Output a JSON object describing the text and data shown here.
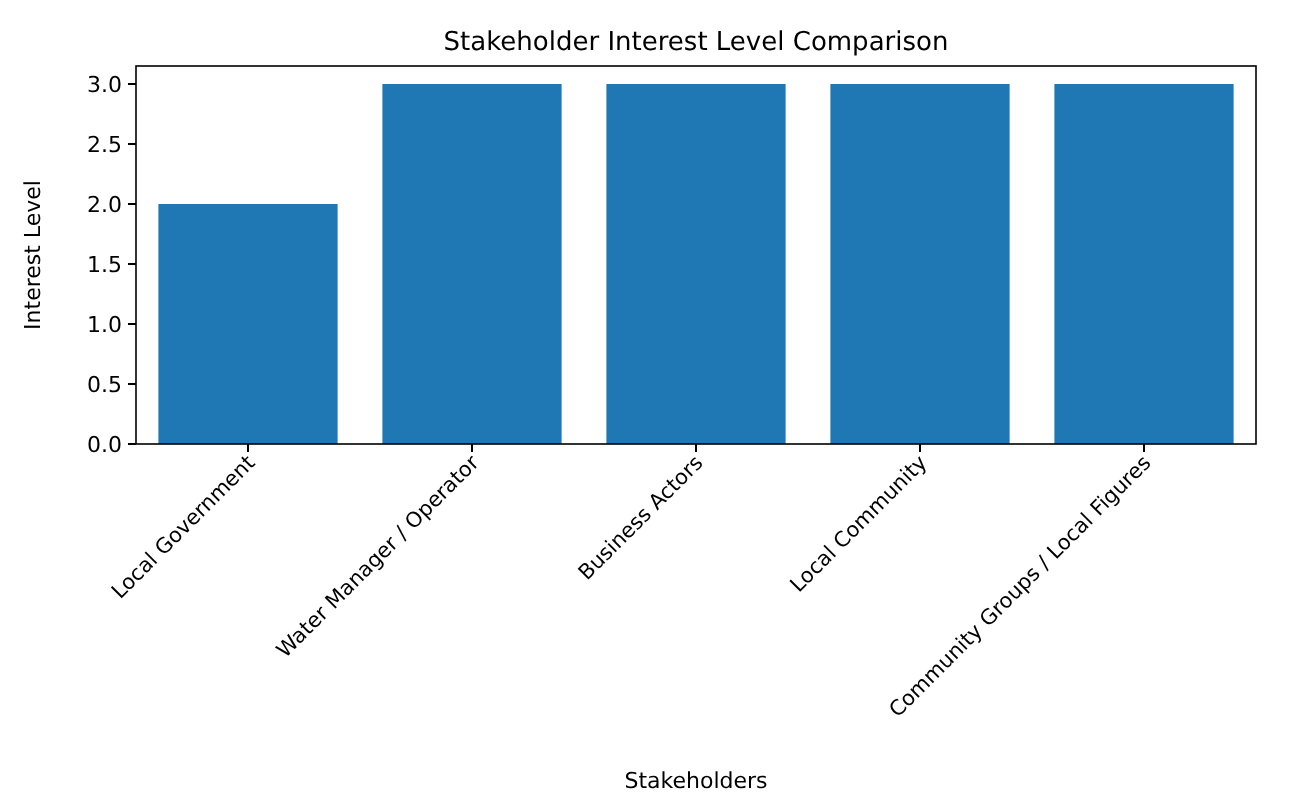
{
  "chart_data": {
    "type": "bar",
    "title": "Stakeholder Interest Level Comparison",
    "xlabel": "Stakeholders",
    "ylabel": "Interest Level",
    "categories": [
      "Local Government",
      "Water Manager / Operator",
      "Business Actors",
      "Local Community",
      "Community Groups / Local Figures"
    ],
    "values": [
      2,
      3,
      3,
      3,
      3
    ],
    "color": "#1f77b4",
    "ylim": [
      0,
      3.15
    ],
    "yticks": [
      {
        "value": 0,
        "label": "0.0"
      },
      {
        "value": 0.5,
        "label": "0.5"
      },
      {
        "value": 1,
        "label": "1.0"
      },
      {
        "value": 1.5,
        "label": "1.5"
      },
      {
        "value": 2,
        "label": "2.0"
      },
      {
        "value": 2.5,
        "label": "2.5"
      },
      {
        "value": 3,
        "label": "3.0"
      }
    ]
  }
}
